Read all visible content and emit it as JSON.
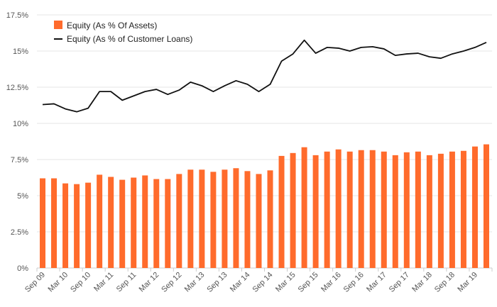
{
  "chart_data": {
    "type": "bar+line",
    "x_labels": [
      "Sep 09",
      "Mar 10",
      "Sep 10",
      "Mar 11",
      "Sep 11",
      "Mar 12",
      "Sep 12",
      "Mar 13",
      "Sep 13",
      "Mar 14",
      "Sep 14",
      "Mar 15",
      "Sep 15",
      "Mar 16",
      "Sep 16",
      "Mar 17",
      "Sep 17",
      "Mar 18",
      "Sep 18",
      "Mar 19"
    ],
    "y_ticks": [
      "0%",
      "2.5%",
      "5%",
      "7.5%",
      "10%",
      "12.5%",
      "15%",
      "17.5%"
    ],
    "ylim": [
      0,
      17.5
    ],
    "grid": true,
    "legend_position": "top-left",
    "colors": {
      "bars": "#ff6b2c",
      "line": "#111111",
      "grid": "#e6e6e6",
      "axis": "#cccccc"
    },
    "series": [
      {
        "name": "Equity (As % Of Assets)",
        "type": "bar",
        "values": [
          6.2,
          6.2,
          5.85,
          5.8,
          5.9,
          6.45,
          6.3,
          6.1,
          6.25,
          6.4,
          6.15,
          6.15,
          6.5,
          6.8,
          6.8,
          6.65,
          6.8,
          6.9,
          6.7,
          6.5,
          6.75,
          7.75,
          7.95,
          8.35,
          7.8,
          8.05,
          8.2,
          8.05,
          8.15,
          8.15,
          8.05,
          7.8,
          8.0,
          8.05,
          7.8,
          7.9,
          8.05,
          8.1,
          8.4,
          8.55
        ]
      },
      {
        "name": "Equity (As % of Customer Loans)",
        "type": "line",
        "values": [
          11.3,
          11.35,
          11.0,
          10.8,
          11.05,
          12.2,
          12.2,
          11.6,
          11.9,
          12.2,
          12.35,
          12.0,
          12.3,
          12.85,
          12.6,
          12.2,
          12.6,
          12.95,
          12.7,
          12.2,
          12.7,
          14.3,
          14.8,
          15.75,
          14.85,
          15.25,
          15.2,
          15.0,
          15.25,
          15.3,
          15.15,
          14.7,
          14.8,
          14.85,
          14.6,
          14.5,
          14.8,
          15.0,
          15.25,
          15.6
        ]
      }
    ]
  }
}
